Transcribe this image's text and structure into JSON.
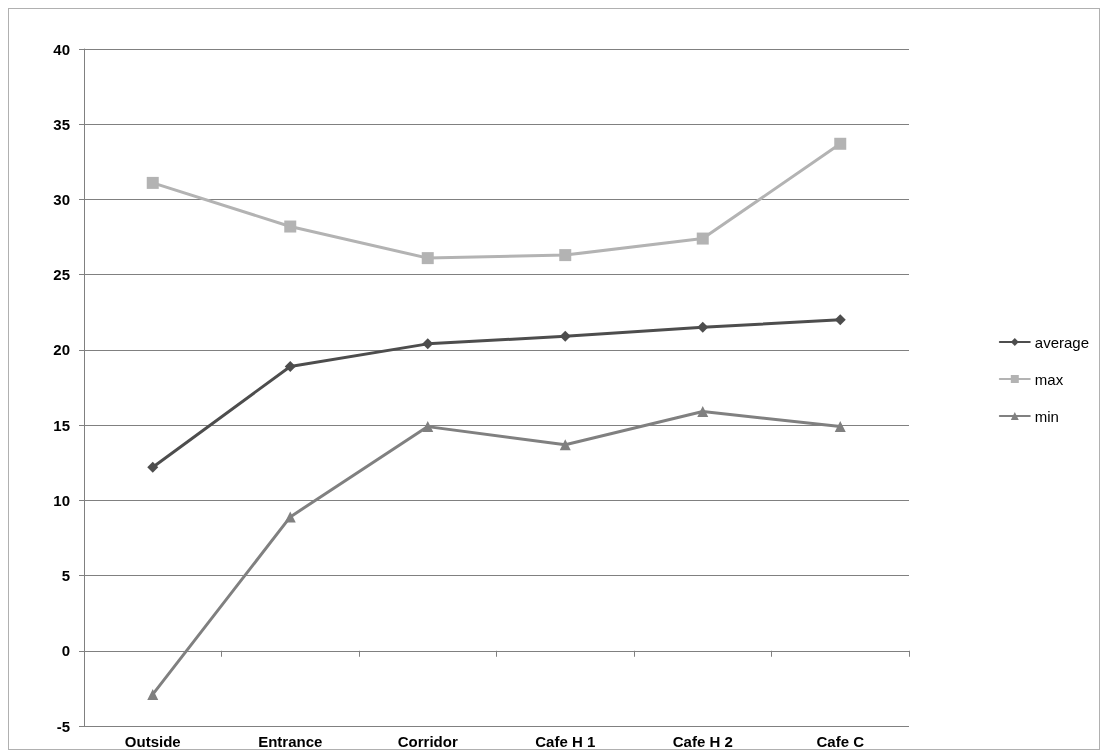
{
  "chart_data": {
    "type": "line",
    "categories": [
      "Outside",
      "Entrance",
      "Corridor",
      "Cafe H 1",
      "Cafe H 2",
      "Cafe C"
    ],
    "series": [
      {
        "name": "average",
        "color": "#4d4d4d",
        "marker": "diamond",
        "values": [
          12.2,
          18.9,
          20.4,
          20.9,
          21.5,
          22.0
        ]
      },
      {
        "name": "max",
        "color": "#b3b3b3",
        "marker": "square",
        "values": [
          31.1,
          28.2,
          26.1,
          26.3,
          27.4,
          33.7
        ]
      },
      {
        "name": "min",
        "color": "#808080",
        "marker": "triangle",
        "values": [
          -2.9,
          8.9,
          14.9,
          13.7,
          15.9,
          14.9
        ]
      }
    ],
    "ylim": [
      -5,
      40
    ],
    "yticks": [
      -5,
      0,
      5,
      10,
      15,
      20,
      25,
      30,
      35,
      40
    ],
    "grid": "y",
    "legend": "right",
    "line_style": "solid"
  }
}
